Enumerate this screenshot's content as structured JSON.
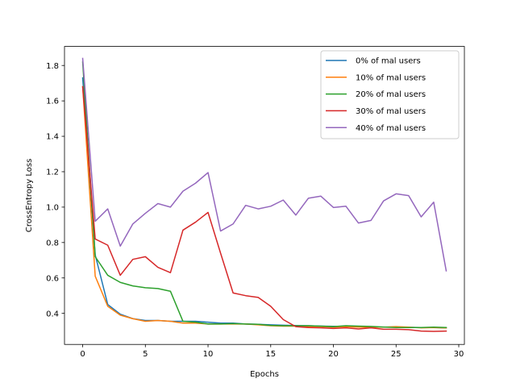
{
  "chart_data": {
    "type": "line",
    "title": "",
    "xlabel": "Epochs",
    "ylabel": "CrossEntropy Loss",
    "xlim": [
      -1.45,
      30.45
    ],
    "ylim": [
      0.2245,
      1.9075
    ],
    "xticks": [
      0,
      5,
      10,
      15,
      20,
      25,
      30
    ],
    "yticks": [
      0.4,
      0.6,
      0.8,
      1.0,
      1.2,
      1.4,
      1.6,
      1.8
    ],
    "ytick_labels": [
      "0.4",
      "0.6",
      "0.8",
      "1.0",
      "1.2",
      "1.4",
      "1.6",
      "1.8"
    ],
    "grid": false,
    "legend_position": "top-right",
    "x": [
      0,
      1,
      2,
      3,
      4,
      5,
      6,
      7,
      8,
      9,
      10,
      11,
      12,
      13,
      14,
      15,
      16,
      17,
      18,
      19,
      20,
      21,
      22,
      23,
      24,
      25,
      26,
      27,
      28,
      29
    ],
    "series": [
      {
        "name": "0% of mal users",
        "color": "#1f77b4",
        "values": [
          1.73,
          0.73,
          0.45,
          0.395,
          0.37,
          0.36,
          0.36,
          0.355,
          0.355,
          0.355,
          0.35,
          0.345,
          0.345,
          0.34,
          0.338,
          0.335,
          0.333,
          0.331,
          0.33,
          0.328,
          0.327,
          0.325,
          0.324,
          0.323,
          0.322,
          0.322,
          0.321,
          0.32,
          0.32,
          0.318
        ]
      },
      {
        "name": "10% of mal users",
        "color": "#ff7f0e",
        "values": [
          1.68,
          0.61,
          0.44,
          0.39,
          0.37,
          0.355,
          0.36,
          0.355,
          0.345,
          0.345,
          0.34,
          0.34,
          0.34,
          0.34,
          0.335,
          0.33,
          0.328,
          0.328,
          0.325,
          0.325,
          0.322,
          0.325,
          0.322,
          0.322,
          0.322,
          0.325,
          0.322,
          0.318,
          0.32,
          0.318
        ]
      },
      {
        "name": "20% of mal users",
        "color": "#2ca02c",
        "values": [
          1.82,
          0.72,
          0.615,
          0.575,
          0.555,
          0.545,
          0.54,
          0.525,
          0.355,
          0.35,
          0.34,
          0.34,
          0.342,
          0.34,
          0.338,
          0.332,
          0.33,
          0.33,
          0.33,
          0.328,
          0.325,
          0.33,
          0.328,
          0.326,
          0.323,
          0.32,
          0.32,
          0.32,
          0.322,
          0.32
        ]
      },
      {
        "name": "30% of mal users",
        "color": "#d62728",
        "values": [
          1.68,
          0.82,
          0.785,
          0.615,
          0.705,
          0.72,
          0.66,
          0.63,
          0.87,
          0.915,
          0.97,
          0.74,
          0.515,
          0.5,
          0.49,
          0.44,
          0.365,
          0.325,
          0.32,
          0.318,
          0.315,
          0.318,
          0.312,
          0.318,
          0.31,
          0.31,
          0.308,
          0.3,
          0.298,
          0.3
        ]
      },
      {
        "name": "40% of mal users",
        "color": "#9467bd",
        "values": [
          1.84,
          0.92,
          0.99,
          0.78,
          0.905,
          0.965,
          1.02,
          1.0,
          1.09,
          1.135,
          1.195,
          0.865,
          0.905,
          1.01,
          0.99,
          1.005,
          1.04,
          0.955,
          1.05,
          1.062,
          0.998,
          1.005,
          0.91,
          0.925,
          1.035,
          1.075,
          1.065,
          0.945,
          1.028,
          0.64
        ]
      }
    ]
  }
}
